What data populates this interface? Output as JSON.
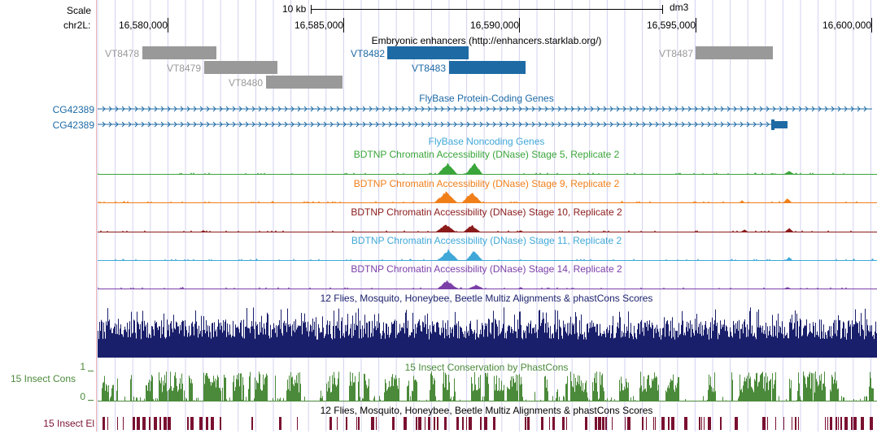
{
  "scale_bar": {
    "label": "Scale",
    "length_label": "10 kb",
    "assembly": "dm3"
  },
  "ruler": {
    "chrom_label": "chr2L:",
    "tick_labels": [
      "16,580,000",
      "16,585,000",
      "16,590,000",
      "16,595,000",
      "16,600,000"
    ]
  },
  "tracks": {
    "enhancers": {
      "title": "Embryonic enhancers (http://enhancers.starklab.org/)",
      "items": [
        {
          "name": "VT8478",
          "color": "#999999"
        },
        {
          "name": "VT8479",
          "color": "#999999"
        },
        {
          "name": "VT8480",
          "color": "#999999"
        },
        {
          "name": "VT8482",
          "color": "#1d6aa5"
        },
        {
          "name": "VT8483",
          "color": "#1d6aa5"
        },
        {
          "name": "VT8487",
          "color": "#999999"
        }
      ]
    },
    "flybase_genes": {
      "title": "FlyBase Protein-Coding Genes",
      "transcripts": [
        "CG42389",
        "CG42389"
      ],
      "color": "#1d6aa5"
    },
    "flybase_noncoding": {
      "title": "FlyBase Noncoding Genes"
    },
    "dnase": [
      {
        "title": "BDTNP Chromatin Accessibility (DNase) Stage 5, Replicate 2",
        "color": "#3aa53a"
      },
      {
        "title": "BDTNP Chromatin Accessibility (DNase) Stage 9, Replicate 2",
        "color": "#f07f1a"
      },
      {
        "title": "BDTNP Chromatin Accessibility (DNase) Stage 10, Replicate 2",
        "color": "#8b1a1a"
      },
      {
        "title": "BDTNP Chromatin Accessibility (DNase) Stage 11, Replicate 2",
        "color": "#3fa8d8"
      },
      {
        "title": "BDTNP Chromatin Accessibility (DNase) Stage 14, Replicate 2",
        "color": "#7b3fa8"
      }
    ],
    "multiz": {
      "title": "12 Flies, Mosquito, Honeybee, Beetle Multiz Alignments & phastCons Scores",
      "color": "#1a1f6b"
    },
    "phastcons": {
      "title": "15 Insect Conservation by PhastCons",
      "side_label": "15 Insect Cons",
      "axis_max": "1",
      "axis_min": "0",
      "color": "#4b8a3a"
    },
    "elements": {
      "title": "12 Flies, Mosquito, Honeybee, Beetle Multiz Alignments & phastCons Scores",
      "side_label": "15 Insect El",
      "color": "#7a1030"
    }
  },
  "colors": {
    "guide_line": "#d2d2f0",
    "side_rule": "#f0b4b4"
  }
}
